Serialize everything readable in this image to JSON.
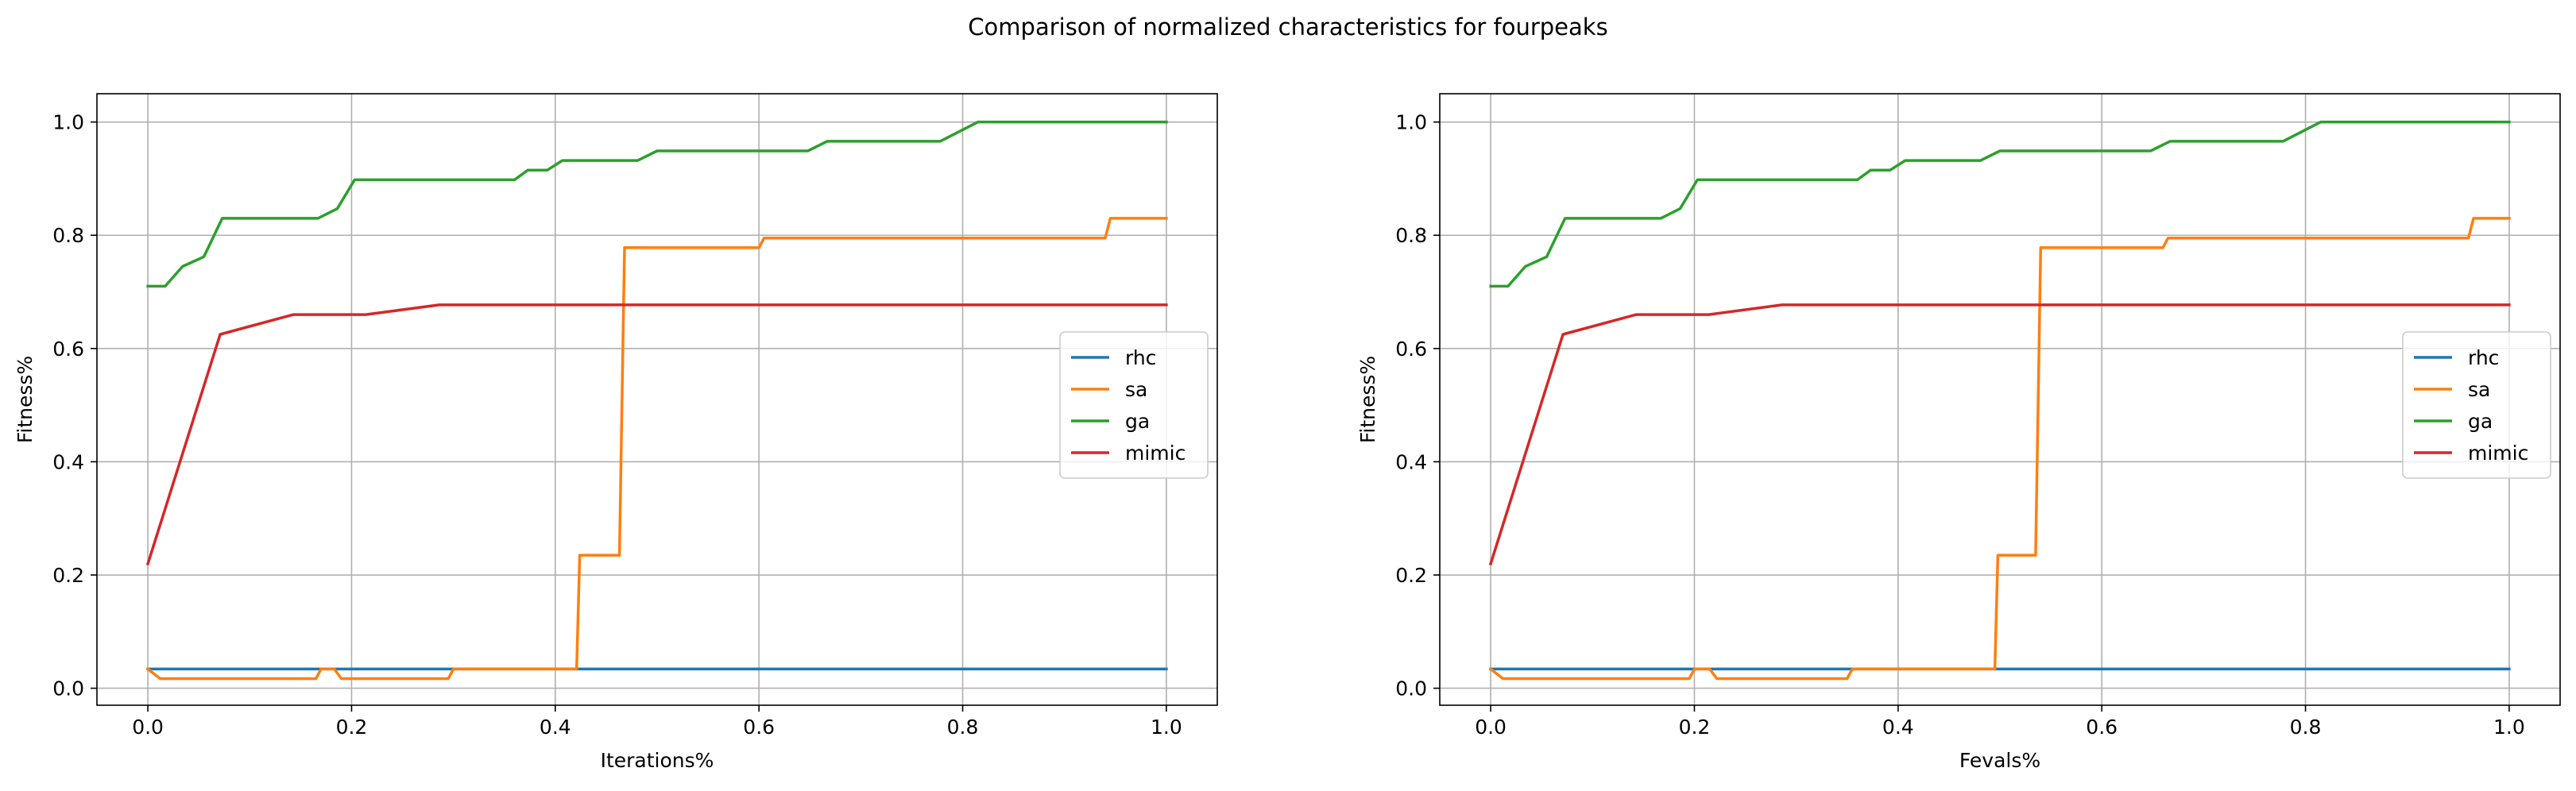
{
  "figure_title": "Comparison of normalized characteristics for fourpeaks",
  "colors": {
    "rhc": "#1f77b4",
    "sa": "#ff7f0e",
    "ga": "#2ca02c",
    "mimic": "#d62728"
  },
  "chart_data": [
    {
      "type": "line",
      "xlabel": "Iterations%",
      "ylabel": "Fitness%",
      "xlim": [
        -0.05,
        1.05
      ],
      "ylim": [
        -0.03,
        1.05
      ],
      "xticks": [
        0.0,
        0.2,
        0.4,
        0.6,
        0.8,
        1.0
      ],
      "xtick_labels": [
        "0.0",
        "0.2",
        "0.4",
        "0.6",
        "0.8",
        "1.0"
      ],
      "yticks": [
        0.0,
        0.2,
        0.4,
        0.6,
        0.8,
        1.0
      ],
      "ytick_labels": [
        "0.0",
        "0.2",
        "0.4",
        "0.6",
        "0.8",
        "1.0"
      ],
      "grid": true,
      "legend_position": "center-right",
      "series": [
        {
          "name": "rhc",
          "x": [
            0.0,
            1.0
          ],
          "y": [
            0.034,
            0.034
          ]
        },
        {
          "name": "sa",
          "x": [
            0.0,
            0.012,
            0.165,
            0.17,
            0.183,
            0.19,
            0.295,
            0.3,
            0.421,
            0.424,
            0.463,
            0.468,
            0.6,
            0.605,
            0.94,
            0.945,
            1.0
          ],
          "y": [
            0.034,
            0.017,
            0.017,
            0.034,
            0.034,
            0.017,
            0.017,
            0.034,
            0.034,
            0.235,
            0.235,
            0.778,
            0.778,
            0.795,
            0.795,
            0.83,
            0.83
          ]
        },
        {
          "name": "ga",
          "x": [
            0.0,
            0.017,
            0.034,
            0.055,
            0.073,
            0.167,
            0.186,
            0.203,
            0.36,
            0.373,
            0.392,
            0.407,
            0.481,
            0.5,
            0.648,
            0.667,
            0.778,
            0.815,
            1.0
          ],
          "y": [
            0.71,
            0.71,
            0.745,
            0.762,
            0.83,
            0.83,
            0.847,
            0.898,
            0.898,
            0.915,
            0.915,
            0.932,
            0.932,
            0.949,
            0.949,
            0.966,
            0.966,
            1.0,
            1.0
          ]
        },
        {
          "name": "mimic",
          "x": [
            0.0,
            0.071,
            0.143,
            0.214,
            0.286,
            1.0
          ],
          "y": [
            0.22,
            0.625,
            0.66,
            0.66,
            0.677,
            0.677
          ]
        }
      ]
    },
    {
      "type": "line",
      "xlabel": "Fevals%",
      "ylabel": "Fitness%",
      "xlim": [
        -0.05,
        1.05
      ],
      "ylim": [
        -0.03,
        1.05
      ],
      "xticks": [
        0.0,
        0.2,
        0.4,
        0.6,
        0.8,
        1.0
      ],
      "xtick_labels": [
        "0.0",
        "0.2",
        "0.4",
        "0.6",
        "0.8",
        "1.0"
      ],
      "yticks": [
        0.0,
        0.2,
        0.4,
        0.6,
        0.8,
        1.0
      ],
      "ytick_labels": [
        "0.0",
        "0.2",
        "0.4",
        "0.6",
        "0.8",
        "1.0"
      ],
      "grid": true,
      "legend_position": "center-right",
      "series": [
        {
          "name": "rhc",
          "x": [
            0.0,
            1.0
          ],
          "y": [
            0.034,
            0.034
          ]
        },
        {
          "name": "sa",
          "x": [
            0.0,
            0.012,
            0.195,
            0.2,
            0.215,
            0.222,
            0.35,
            0.355,
            0.495,
            0.498,
            0.535,
            0.54,
            0.66,
            0.665,
            0.96,
            0.965,
            1.0
          ],
          "y": [
            0.034,
            0.017,
            0.017,
            0.034,
            0.034,
            0.017,
            0.017,
            0.034,
            0.034,
            0.235,
            0.235,
            0.778,
            0.778,
            0.795,
            0.795,
            0.83,
            0.83
          ]
        },
        {
          "name": "ga",
          "x": [
            0.0,
            0.017,
            0.034,
            0.055,
            0.073,
            0.167,
            0.186,
            0.203,
            0.36,
            0.373,
            0.392,
            0.407,
            0.481,
            0.5,
            0.648,
            0.667,
            0.778,
            0.815,
            1.0
          ],
          "y": [
            0.71,
            0.71,
            0.745,
            0.762,
            0.83,
            0.83,
            0.847,
            0.898,
            0.898,
            0.915,
            0.915,
            0.932,
            0.932,
            0.949,
            0.949,
            0.966,
            0.966,
            1.0,
            1.0
          ]
        },
        {
          "name": "mimic",
          "x": [
            0.0,
            0.071,
            0.143,
            0.214,
            0.286,
            1.0
          ],
          "y": [
            0.22,
            0.625,
            0.66,
            0.66,
            0.677,
            0.677
          ]
        }
      ]
    }
  ]
}
